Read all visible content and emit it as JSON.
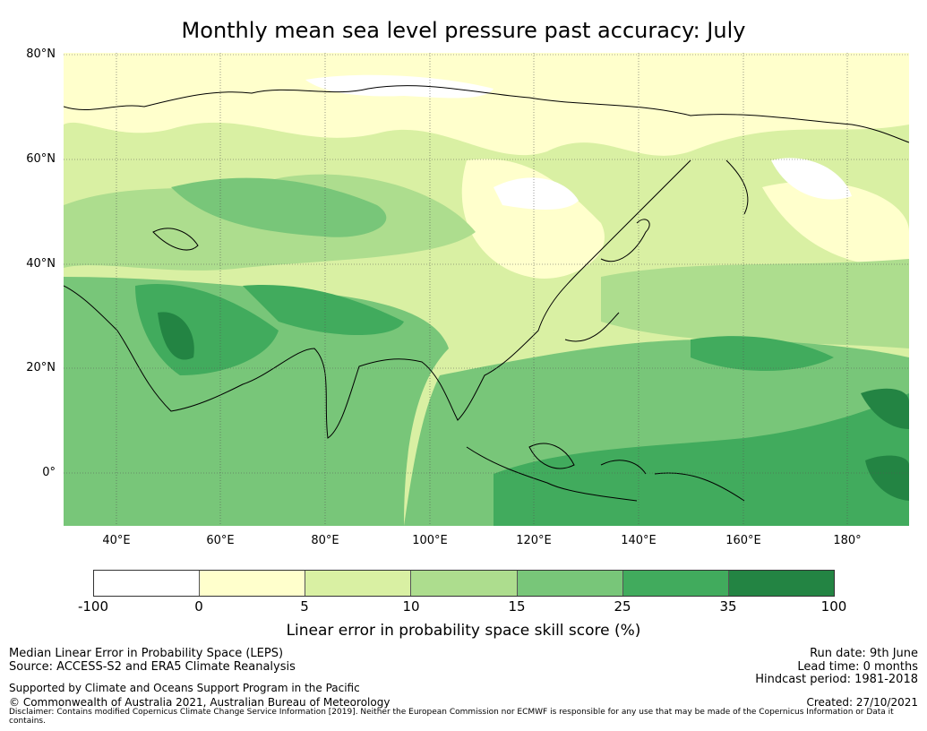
{
  "title": "Monthly mean sea level pressure past accuracy: July",
  "map": {
    "latitude_labels": [
      "80°N",
      "60°N",
      "40°N",
      "20°N",
      "0°"
    ],
    "longitude_labels": [
      "40°E",
      "60°E",
      "80°E",
      "100°E",
      "120°E",
      "140°E",
      "160°E",
      "180°"
    ],
    "gridlines": "dotted"
  },
  "colorbar": {
    "label": "Linear error in probability space skill score (%)",
    "ticks": [
      "-100",
      "0",
      "5",
      "10",
      "15",
      "25",
      "35",
      "100"
    ],
    "colors": [
      "#ffffff",
      "#ffffcc",
      "#d9f0a3",
      "#addd8e",
      "#78c679",
      "#41ab5d",
      "#238443"
    ]
  },
  "info_left": {
    "line1": "Median Linear Error in Probability Space (LEPS)",
    "line2": "Source: ACCESS-S2 and ERA5 Climate Reanalysis",
    "line3": "Supported by Climate and Oceans Support Program in the Pacific",
    "line4": "© Commonwealth of Australia 2021, Australian Bureau of Meteorology"
  },
  "info_right": {
    "run_date": "Run date: 9th June",
    "lead_time": "Lead time: 0 months",
    "hindcast": "Hindcast period: 1981-2018",
    "created": "Created: 27/10/2021"
  },
  "disclaimer": "Disclaimer: Contains modified Copernicus Climate Change Service Information [2019]. Neither the European Commission nor ECMWF is responsible for any use that may be made of the Copernicus Information or Data it contains."
}
